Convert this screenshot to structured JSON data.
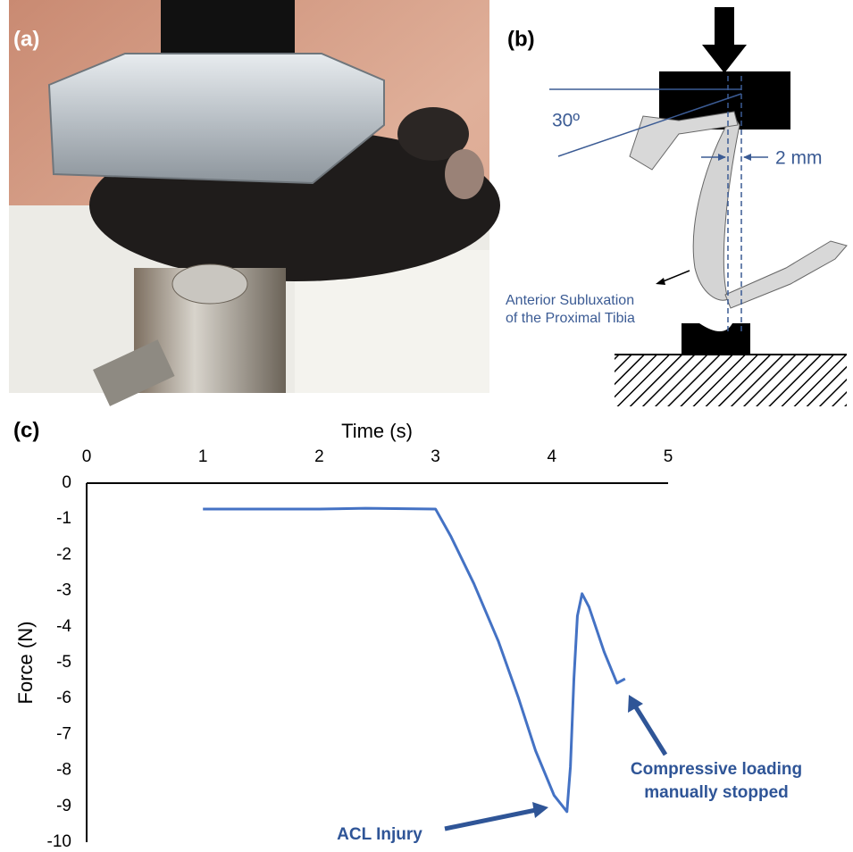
{
  "panels": {
    "a": {
      "label": "(a)"
    },
    "b": {
      "label": "(b)",
      "angle": "30º",
      "offset": "2 mm",
      "note": [
        "Anterior Subluxation",
        "of the Proximal Tibia"
      ]
    }
  },
  "chart_data": {
    "type": "line",
    "panel_label": "(c)",
    "x_label": "Time (s)",
    "y_label": "Force (N)",
    "color": "#4472c4",
    "x": [
      1,
      2,
      2.4,
      3,
      3.13,
      3.33,
      3.52,
      3.54,
      3.71,
      3.86,
      4.02,
      4.13,
      4.16,
      4.19,
      4.22,
      4.26,
      4.32,
      4.45,
      4.56,
      4.63
    ],
    "values": [
      -0.72,
      -0.72,
      -0.7,
      -0.72,
      -1.47,
      -2.8,
      -4.25,
      -4.4,
      -5.95,
      -7.45,
      -8.7,
      -9.15,
      -7.9,
      -5.45,
      -3.7,
      -3.08,
      -3.45,
      -4.7,
      -5.57,
      -5.45
    ],
    "xlim": [
      0,
      5
    ],
    "ylim": [
      -10,
      0
    ],
    "xticks": [
      0,
      1,
      2,
      3,
      4,
      5
    ],
    "yticks": [
      0,
      -1,
      -2,
      -3,
      -4,
      -5,
      -6,
      -7,
      -8,
      -9,
      -10
    ],
    "grid": false,
    "annotations": [
      {
        "lines": [
          "ACL Injury"
        ]
      },
      {
        "lines": [
          "Compressive loading",
          "manually stopped"
        ]
      }
    ]
  }
}
